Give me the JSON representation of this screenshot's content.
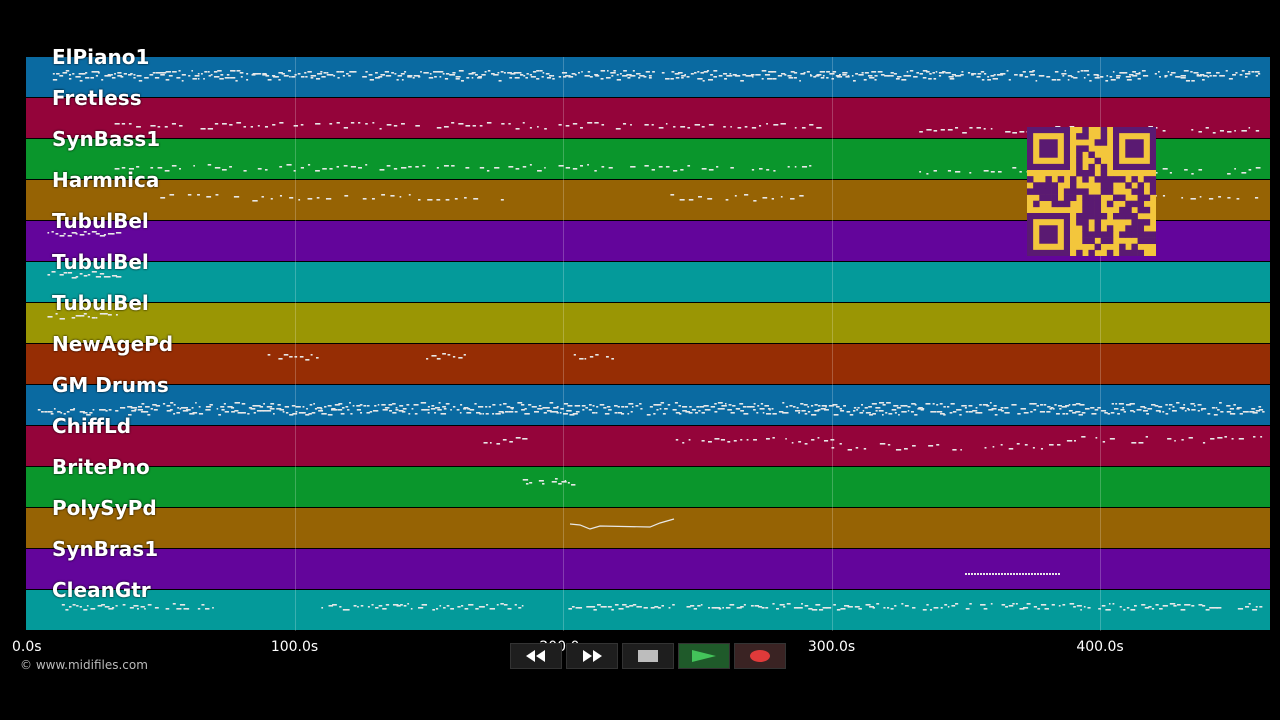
{
  "copyright": "© www.midifiles.com",
  "transport": {
    "rewind_icon": "rewind-icon",
    "forward_icon": "fast-forward-icon",
    "stop_icon": "stop-icon",
    "play_icon": "play-icon",
    "record_icon": "record-icon"
  },
  "timeline": {
    "ticks": [
      "0.0s",
      "100.0s",
      "200.0s",
      "300.0s",
      "400.0s"
    ],
    "tick_values": [
      0,
      100,
      200,
      300,
      400
    ]
  },
  "tracks": [
    {
      "name": "ElPiano1",
      "color": "#0a6aa1"
    },
    {
      "name": "Fretless",
      "color": "#94043a"
    },
    {
      "name": "SynBass1",
      "color": "#0a962c"
    },
    {
      "name": "Harmnica",
      "color": "#966304"
    },
    {
      "name": "TubulBel",
      "color": "#63059b"
    },
    {
      "name": "TubulBel",
      "color": "#049a9a"
    },
    {
      "name": "TubulBel",
      "color": "#9a9604"
    },
    {
      "name": "NewAgePd",
      "color": "#962d04"
    },
    {
      "name": "GM Drums",
      "color": "#0a6aa1"
    },
    {
      "name": "ChiffLd",
      "color": "#94043a"
    },
    {
      "name": "BritePno",
      "color": "#0a962c"
    },
    {
      "name": "PolySyPd",
      "color": "#966304"
    },
    {
      "name": "SynBras1",
      "color": "#63059b"
    },
    {
      "name": "CleanGtr",
      "color": "#049a9a"
    }
  ],
  "qr_color": "#f3c63c"
}
